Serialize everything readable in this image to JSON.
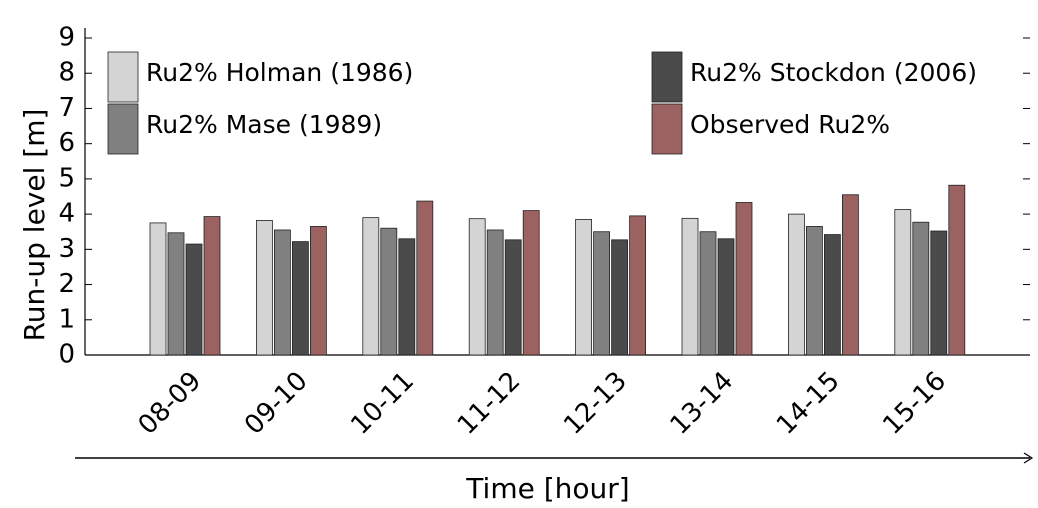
{
  "chart_data": {
    "type": "bar",
    "xlabel": "Time [hour]",
    "ylabel": "Run-up level   [m]",
    "categories": [
      "08-09",
      "09-10",
      "10-11",
      "11-12",
      "12-13",
      "13-14",
      "14-15",
      "15-16"
    ],
    "series": [
      {
        "name": "Ru2% Holman (1986)",
        "color": "#d4d4d4",
        "values": [
          3.75,
          3.82,
          3.9,
          3.87,
          3.85,
          3.88,
          4.0,
          4.13
        ]
      },
      {
        "name": "Ru2% Mase (1989)",
        "color": "#808080",
        "values": [
          3.47,
          3.55,
          3.6,
          3.55,
          3.5,
          3.5,
          3.65,
          3.77
        ]
      },
      {
        "name": "Ru2% Stockdon (2006)",
        "color": "#4b4b4b",
        "values": [
          3.15,
          3.22,
          3.3,
          3.27,
          3.27,
          3.3,
          3.42,
          3.52
        ]
      },
      {
        "name": "Observed Ru2%",
        "color": "#9c6262",
        "values": [
          3.93,
          3.65,
          4.37,
          4.1,
          3.95,
          4.33,
          4.55,
          4.82
        ]
      }
    ],
    "ylim": [
      0,
      9
    ],
    "yticks": [
      0,
      1,
      2,
      3,
      4,
      5,
      6,
      7,
      8,
      9
    ]
  }
}
